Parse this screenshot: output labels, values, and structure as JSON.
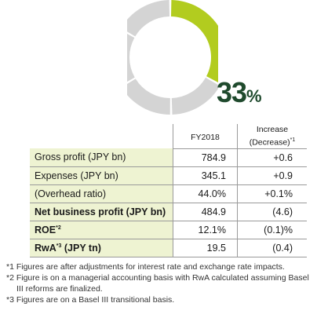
{
  "chart_data": {
    "type": "pie",
    "style": "donut",
    "slices": [
      {
        "value": 33,
        "color": "#b2cc1f",
        "highlight": true
      },
      {
        "value": 67,
        "color": "#d4d4d4",
        "segments": 4
      }
    ],
    "center_label": {
      "number": "33",
      "unit": "%",
      "color": "#1f4a2d"
    }
  },
  "table": {
    "headers": {
      "col1": "FY2018",
      "col2_line1": "Increase",
      "col2_line2": "(Decrease)",
      "col2_sup": "*1"
    },
    "rows": [
      {
        "label": "Gross profit (JPY bn)",
        "sup": "",
        "label_rest": "",
        "v1": "784.9",
        "v2": "+0.6",
        "bold": false
      },
      {
        "label": "Expenses (JPY bn)",
        "sup": "",
        "label_rest": "",
        "v1": "345.1",
        "v2": "+0.9",
        "bold": false
      },
      {
        "label": "(Overhead ratio)",
        "sup": "",
        "label_rest": "",
        "v1": "44.0%",
        "v2": "+0.1%",
        "bold": false
      },
      {
        "label": "Net business profit (JPY bn)",
        "sup": "",
        "label_rest": "",
        "v1": "484.9",
        "v2": "(4.6)",
        "bold": true
      },
      {
        "label": "ROE",
        "sup": "*2",
        "label_rest": "",
        "v1": "12.1%",
        "v2": "(0.1)%",
        "bold": true
      },
      {
        "label": "RwA",
        "sup": "*3",
        "label_rest": " (JPY tn)",
        "v1": "19.5",
        "v2": "(0.4)",
        "bold": true
      }
    ]
  },
  "notes": [
    "*1 Figures are after adjustments for interest rate and exchange rate impacts.",
    "*2 Figure is on a managerial accounting basis with RwA calculated assuming Basel III reforms are finalized.",
    "*3 Figures are on a Basel III transitional basis."
  ]
}
